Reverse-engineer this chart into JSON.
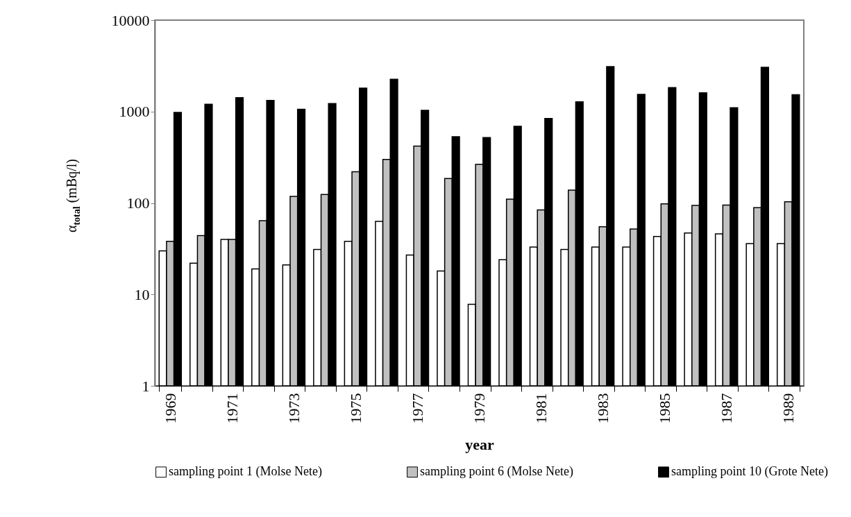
{
  "chart_data": {
    "type": "bar",
    "xlabel": "year",
    "ylabel": "α$_{total}$ (mBq/l)",
    "categories": [
      "1969",
      null,
      "1971",
      null,
      "1973",
      null,
      "1975",
      null,
      "1977",
      null,
      "1979",
      null,
      "1981",
      null,
      "1983",
      null,
      "1985",
      null,
      "1987",
      null,
      "1989"
    ],
    "series": [
      {
        "name": "sampling point 1 (Molse Nete)",
        "color": "#ffffff",
        "values": [
          30,
          22,
          40,
          19,
          21,
          31,
          38,
          63,
          27,
          18,
          7.8,
          24,
          33,
          31,
          33,
          33,
          43,
          47,
          46,
          36,
          36
        ]
      },
      {
        "name": "sampling point 6 (Molse Nete)",
        "color": "#c0c0c0",
        "values": [
          38,
          44,
          40,
          64,
          118,
          124,
          220,
          300,
          420,
          185,
          265,
          110,
          84,
          138,
          55,
          52,
          98,
          94,
          95,
          89,
          103
        ]
      },
      {
        "name": "sampling point 10 (Grote Nete)",
        "color": "#000000",
        "values": [
          980,
          1200,
          1420,
          1320,
          1060,
          1220,
          1800,
          2250,
          1030,
          530,
          520,
          690,
          840,
          1280,
          3100,
          1540,
          1830,
          1600,
          1100,
          3050,
          1530
        ]
      }
    ],
    "log": true,
    "ylim": [
      1,
      10000
    ],
    "yticks": [
      1,
      10,
      100,
      1000,
      10000
    ],
    "grid": false,
    "legend": "bottom"
  }
}
